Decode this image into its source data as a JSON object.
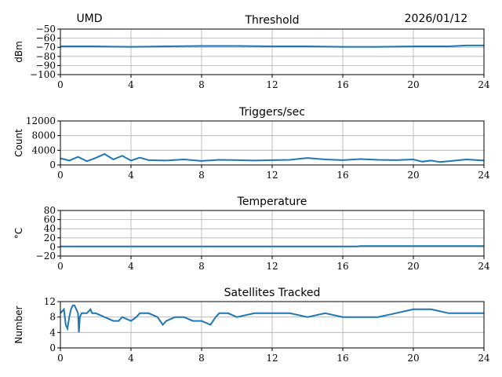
{
  "header": {
    "left": "UMD",
    "right": "2026/01/12"
  },
  "chart_data": [
    {
      "type": "line",
      "title": "Threshold",
      "ylabel": "dBm",
      "xlim": [
        0,
        24
      ],
      "ylim": [
        -100,
        -50
      ],
      "xticks": [
        "0",
        "4",
        "8",
        "12",
        "16",
        "20",
        "24"
      ],
      "yticks": [
        "−100",
        "−90",
        "−80",
        "−70",
        "−60",
        "−50"
      ],
      "ytickvals": [
        -100,
        -90,
        -80,
        -70,
        -60,
        -50
      ],
      "x": [
        0,
        2,
        4,
        6,
        8,
        10,
        12,
        14,
        16,
        18,
        20,
        22,
        23,
        24
      ],
      "y": [
        -69,
        -69,
        -69.5,
        -69,
        -68.5,
        -68.5,
        -69,
        -69,
        -69.5,
        -69.5,
        -69,
        -69,
        -68,
        -68
      ]
    },
    {
      "type": "line",
      "title": "Triggers/sec",
      "ylabel": "Count",
      "xlim": [
        0,
        24
      ],
      "ylim": [
        0,
        12000
      ],
      "xticks": [
        "0",
        "4",
        "8",
        "12",
        "16",
        "20",
        "24"
      ],
      "yticks": [
        "0",
        "4000",
        "8000",
        "12000"
      ],
      "ytickvals": [
        0,
        4000,
        8000,
        12000
      ],
      "x": [
        0,
        0.5,
        1,
        1.5,
        2,
        2.5,
        3,
        3.5,
        4,
        4.5,
        5,
        6,
        7,
        8,
        9,
        10,
        11,
        12,
        13,
        14,
        15,
        16,
        17,
        18,
        19,
        20,
        20.5,
        21,
        21.5,
        22,
        23,
        24
      ],
      "y": [
        1800,
        1200,
        2200,
        1000,
        1900,
        3000,
        1500,
        2500,
        1200,
        2000,
        1300,
        1200,
        1500,
        1100,
        1400,
        1300,
        1200,
        1300,
        1400,
        1900,
        1500,
        1300,
        1600,
        1400,
        1300,
        1500,
        900,
        1200,
        800,
        1000,
        1500,
        1200
      ]
    },
    {
      "type": "line",
      "title": "Temperature",
      "ylabel": "°C",
      "xlim": [
        0,
        24
      ],
      "ylim": [
        -20,
        80
      ],
      "xticks": [
        "0",
        "4",
        "8",
        "12",
        "16",
        "20",
        "24"
      ],
      "yticks": [
        "−20",
        "0",
        "20",
        "40",
        "60",
        "80"
      ],
      "ytickvals": [
        -20,
        0,
        20,
        40,
        60,
        80
      ],
      "x": [
        0,
        4,
        8,
        12,
        16,
        16.8,
        17,
        20,
        24
      ],
      "y": [
        1,
        1,
        1,
        1,
        1,
        1,
        2,
        2,
        2
      ]
    },
    {
      "type": "line",
      "title": "Satellites Tracked",
      "ylabel": "Number",
      "xlim": [
        0,
        24
      ],
      "ylim": [
        0,
        12
      ],
      "xticks": [
        "0",
        "4",
        "8",
        "12",
        "16",
        "20",
        "24"
      ],
      "yticks": [
        "0",
        "4",
        "8",
        "12"
      ],
      "ytickvals": [
        0,
        4,
        8,
        12
      ],
      "x": [
        0,
        0.2,
        0.3,
        0.4,
        0.5,
        0.6,
        0.7,
        0.8,
        0.9,
        1,
        1.05,
        1.1,
        1.2,
        1.5,
        1.7,
        1.8,
        2,
        2.5,
        3,
        3.3,
        3.5,
        4,
        4.3,
        4.5,
        5,
        5.5,
        5.8,
        6,
        6.5,
        7,
        7.5,
        8,
        8.5,
        8.8,
        9,
        9.5,
        10,
        11,
        12,
        13,
        14,
        15,
        16,
        17,
        18,
        19,
        20,
        21,
        22,
        23,
        24
      ],
      "y": [
        9,
        10,
        6,
        5,
        8,
        10,
        11,
        11,
        10,
        9,
        4,
        8,
        9,
        9,
        10,
        9,
        9,
        8,
        7,
        7,
        8,
        7,
        8,
        9,
        9,
        8,
        6,
        7,
        8,
        8,
        7,
        7,
        6,
        8,
        9,
        9,
        8,
        9,
        9,
        9,
        8,
        9,
        8,
        8,
        8,
        9,
        10,
        10,
        9,
        9,
        9
      ]
    }
  ]
}
